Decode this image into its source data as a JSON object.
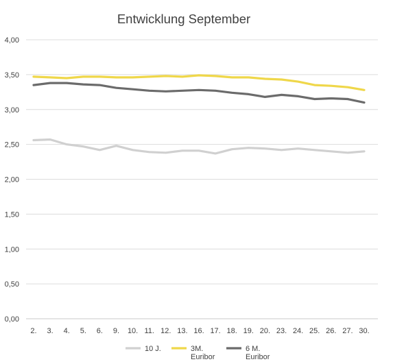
{
  "chart_data": {
    "type": "line",
    "title": "Entwicklung September",
    "xlabel": "",
    "ylabel": "",
    "categories": [
      "2.",
      "3.",
      "4.",
      "5.",
      "6.",
      "9.",
      "10.",
      "11.",
      "12.",
      "13.",
      "16.",
      "17.",
      "18.",
      "19.",
      "20.",
      "23.",
      "24.",
      "25.",
      "26.",
      "27.",
      "30."
    ],
    "ylim": [
      0,
      4
    ],
    "yticks": [
      "0,00",
      "0,50",
      "1,00",
      "1,50",
      "2,00",
      "2,50",
      "3,00",
      "3,50",
      "4,00"
    ],
    "grid": true,
    "legend_position": "bottom",
    "series": [
      {
        "name": "10 J.",
        "legend_lines": [
          "10 J."
        ],
        "color": "#d0d0d0",
        "values": [
          2.56,
          2.57,
          2.5,
          2.47,
          2.42,
          2.48,
          2.42,
          2.39,
          2.38,
          2.41,
          2.41,
          2.37,
          2.43,
          2.45,
          2.44,
          2.42,
          2.44,
          2.42,
          2.4,
          2.38,
          2.4
        ]
      },
      {
        "name": "3M. Euribor",
        "legend_lines": [
          "3M.",
          "Euribor"
        ],
        "color": "#efd74a",
        "values": [
          3.47,
          3.46,
          3.45,
          3.47,
          3.47,
          3.46,
          3.46,
          3.47,
          3.48,
          3.47,
          3.49,
          3.48,
          3.46,
          3.46,
          3.44,
          3.43,
          3.4,
          3.35,
          3.34,
          3.32,
          3.28
        ]
      },
      {
        "name": "6 M. Euribor",
        "legend_lines": [
          "6 M.",
          "Euribor"
        ],
        "color": "#6b6b6b",
        "values": [
          3.35,
          3.38,
          3.38,
          3.36,
          3.35,
          3.31,
          3.29,
          3.27,
          3.26,
          3.27,
          3.28,
          3.27,
          3.24,
          3.22,
          3.18,
          3.21,
          3.19,
          3.15,
          3.16,
          3.15,
          3.1
        ]
      }
    ]
  }
}
